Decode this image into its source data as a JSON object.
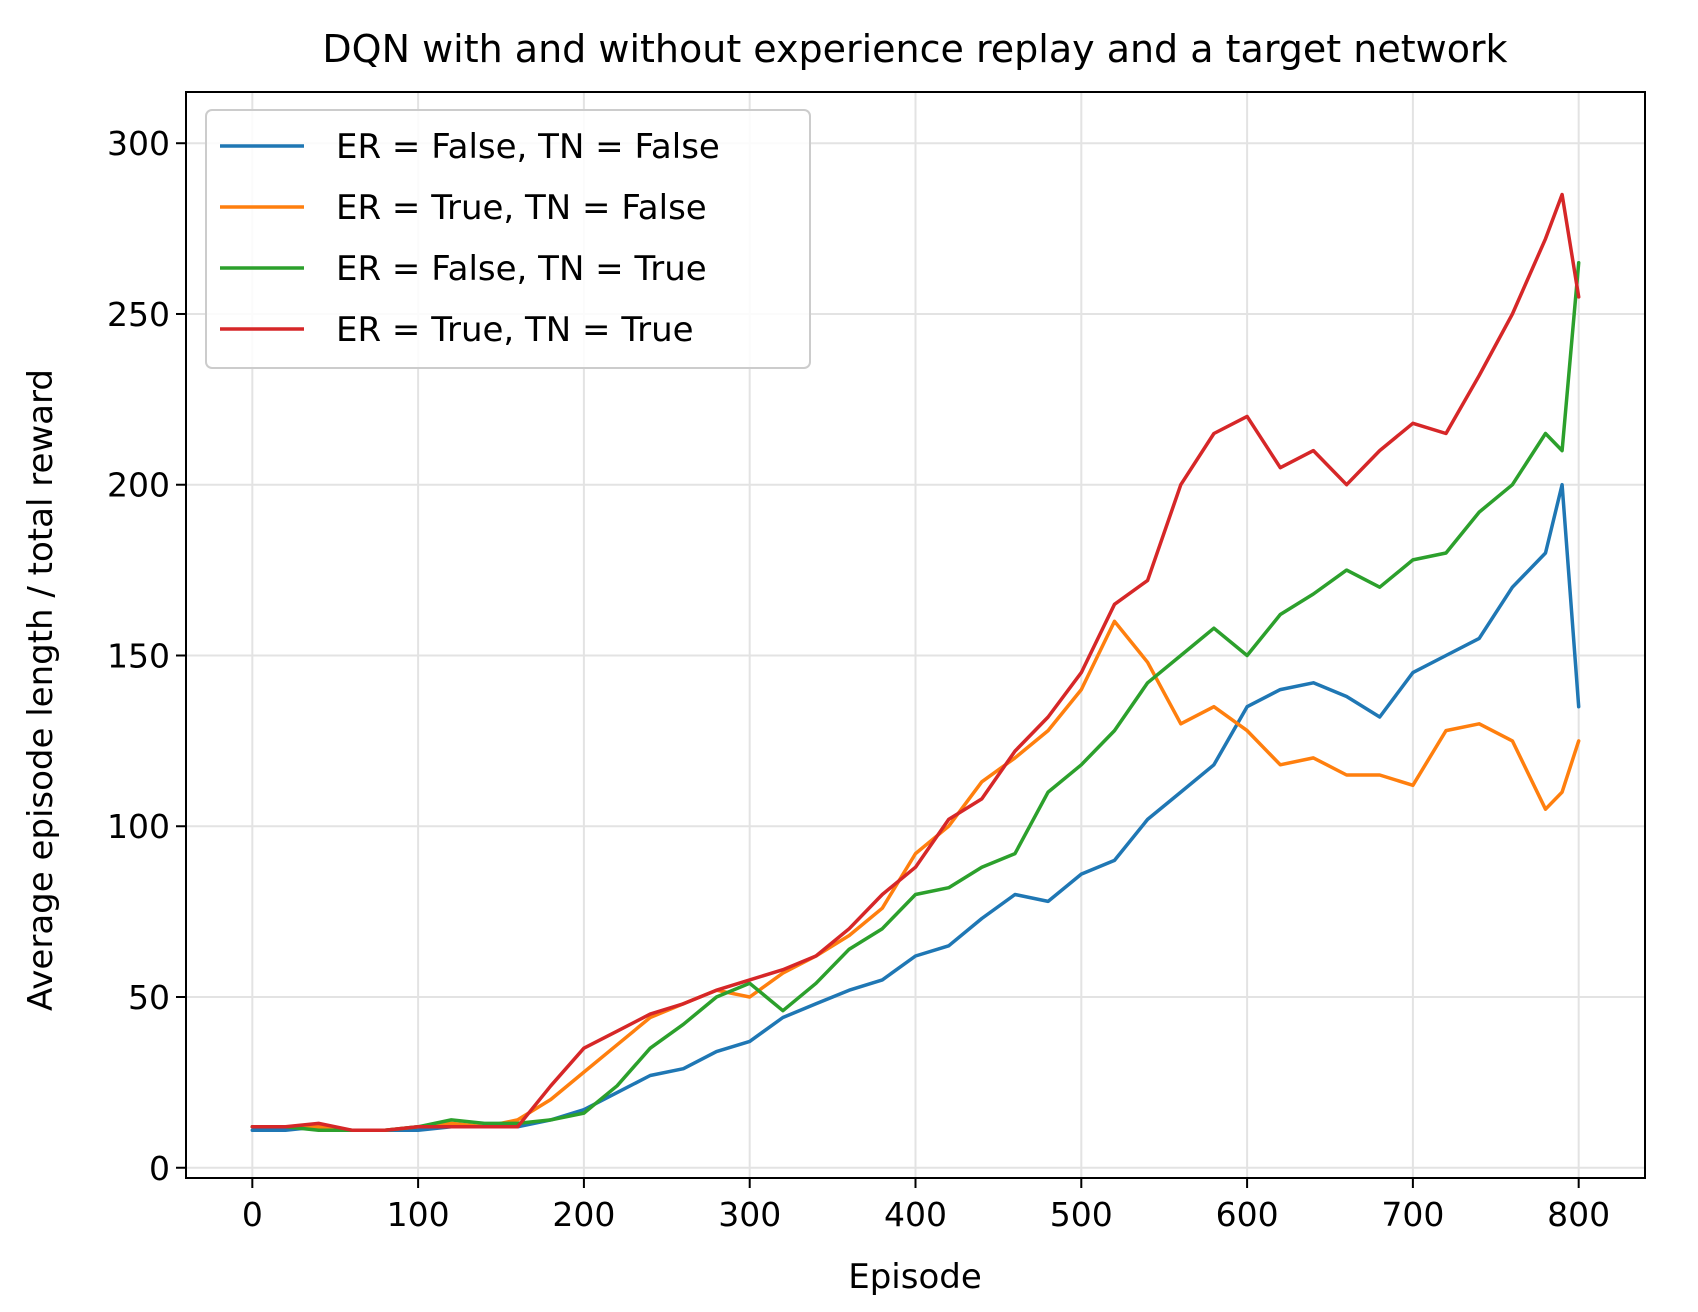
{
  "chart_data": {
    "type": "line",
    "title": "DQN with and without experience replay and a target network",
    "xlabel": "Episode",
    "ylabel": "Average episode length / total reward",
    "xlim": [
      -40,
      840
    ],
    "ylim": [
      -3,
      315
    ],
    "xticks": [
      0,
      100,
      200,
      300,
      400,
      500,
      600,
      700,
      800
    ],
    "yticks": [
      0,
      50,
      100,
      150,
      200,
      250,
      300
    ],
    "grid": true,
    "legend": "upper-left",
    "series": [
      {
        "name": "ER = False, TN = False",
        "color": "#1f77b4",
        "x": [
          0,
          20,
          40,
          60,
          80,
          100,
          120,
          140,
          160,
          180,
          200,
          220,
          240,
          260,
          280,
          300,
          320,
          340,
          360,
          380,
          400,
          420,
          440,
          460,
          480,
          500,
          520,
          540,
          560,
          580,
          600,
          620,
          640,
          660,
          680,
          700,
          720,
          740,
          760,
          780,
          790,
          800
        ],
        "y": [
          11,
          11,
          12,
          11,
          11,
          11,
          12,
          12,
          12,
          14,
          17,
          22,
          27,
          29,
          34,
          37,
          44,
          48,
          52,
          55,
          62,
          65,
          73,
          80,
          78,
          86,
          90,
          102,
          110,
          118,
          135,
          140,
          142,
          138,
          132,
          145,
          150,
          155,
          170,
          180,
          200,
          135
        ]
      },
      {
        "name": "ER = True, TN = False",
        "color": "#ff7f0e",
        "x": [
          0,
          20,
          40,
          60,
          80,
          100,
          120,
          140,
          160,
          180,
          200,
          220,
          240,
          260,
          280,
          300,
          320,
          340,
          360,
          380,
          400,
          420,
          440,
          460,
          480,
          500,
          520,
          540,
          560,
          580,
          600,
          620,
          640,
          660,
          680,
          700,
          720,
          740,
          760,
          780,
          790,
          800
        ],
        "y": [
          12,
          12,
          12,
          11,
          11,
          12,
          13,
          12,
          14,
          20,
          28,
          36,
          44,
          48,
          52,
          50,
          57,
          62,
          68,
          76,
          92,
          100,
          113,
          120,
          128,
          140,
          160,
          148,
          130,
          135,
          128,
          118,
          120,
          115,
          115,
          112,
          128,
          130,
          125,
          105,
          110,
          125
        ]
      },
      {
        "name": "ER = False, TN = True",
        "color": "#2ca02c",
        "x": [
          0,
          20,
          40,
          60,
          80,
          100,
          120,
          140,
          160,
          180,
          200,
          220,
          240,
          260,
          280,
          300,
          320,
          340,
          360,
          380,
          400,
          420,
          440,
          460,
          480,
          500,
          520,
          540,
          560,
          580,
          600,
          620,
          640,
          660,
          680,
          700,
          720,
          740,
          760,
          780,
          790,
          800
        ],
        "y": [
          12,
          12,
          11,
          11,
          11,
          12,
          14,
          13,
          13,
          14,
          16,
          24,
          35,
          42,
          50,
          54,
          46,
          54,
          64,
          70,
          80,
          82,
          88,
          92,
          110,
          118,
          128,
          142,
          150,
          158,
          150,
          162,
          168,
          175,
          170,
          178,
          180,
          192,
          200,
          215,
          210,
          265
        ]
      },
      {
        "name": "ER = True, TN = True",
        "color": "#d62728",
        "x": [
          0,
          20,
          40,
          60,
          80,
          100,
          120,
          140,
          160,
          180,
          200,
          220,
          240,
          260,
          280,
          300,
          320,
          340,
          360,
          380,
          400,
          420,
          440,
          460,
          480,
          500,
          520,
          540,
          560,
          580,
          600,
          620,
          640,
          660,
          680,
          700,
          720,
          740,
          760,
          780,
          790,
          800
        ],
        "y": [
          12,
          12,
          13,
          11,
          11,
          12,
          12,
          12,
          12,
          24,
          35,
          40,
          45,
          48,
          52,
          55,
          58,
          62,
          70,
          80,
          88,
          102,
          108,
          122,
          132,
          145,
          165,
          172,
          200,
          215,
          220,
          205,
          210,
          200,
          210,
          218,
          215,
          232,
          250,
          272,
          285,
          255
        ]
      }
    ]
  }
}
